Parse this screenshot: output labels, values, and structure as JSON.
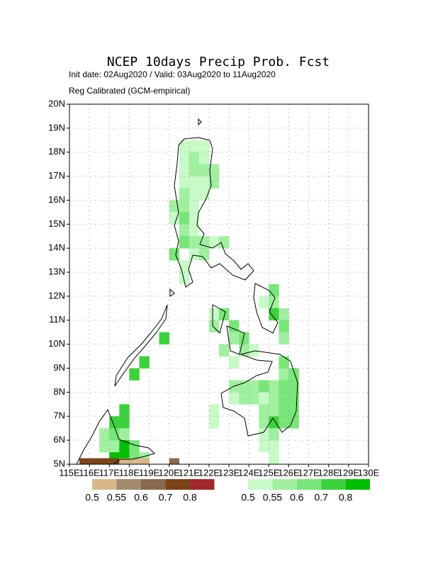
{
  "map": {
    "title": "NCEP 10days Precip Prob. Fcst",
    "subtitle": "Init date: 02Aug2020 / Valid: 03Aug2020 to 11Aug2020",
    "note": "Reg Calibrated (GCM-empirical)",
    "xlim": [
      115,
      130
    ],
    "ylim": [
      5,
      20
    ],
    "xticks": [
      {
        "value": 115,
        "label": "115E"
      },
      {
        "value": 116,
        "label": "116E"
      },
      {
        "value": 117,
        "label": "117E"
      },
      {
        "value": 118,
        "label": "118E"
      },
      {
        "value": 119,
        "label": "119E"
      },
      {
        "value": 120,
        "label": "120E"
      },
      {
        "value": 121,
        "label": "121E"
      },
      {
        "value": 122,
        "label": "122E"
      },
      {
        "value": 123,
        "label": "123E"
      },
      {
        "value": 124,
        "label": "124E"
      },
      {
        "value": 125,
        "label": "125E"
      },
      {
        "value": 126,
        "label": "126E"
      },
      {
        "value": 127,
        "label": "127E"
      },
      {
        "value": 128,
        "label": "128E"
      },
      {
        "value": 129,
        "label": "129E"
      },
      {
        "value": 130,
        "label": "130E"
      }
    ],
    "yticks": [
      {
        "value": 5,
        "label": "5N"
      },
      {
        "value": 6,
        "label": "6N"
      },
      {
        "value": 7,
        "label": "7N"
      },
      {
        "value": 8,
        "label": "8N"
      },
      {
        "value": 9,
        "label": "9N"
      },
      {
        "value": 10,
        "label": "10N"
      },
      {
        "value": 11,
        "label": "11N"
      },
      {
        "value": 12,
        "label": "12N"
      },
      {
        "value": 13,
        "label": "13N"
      },
      {
        "value": 14,
        "label": "14N"
      },
      {
        "value": 15,
        "label": "15N"
      },
      {
        "value": 16,
        "label": "16N"
      },
      {
        "value": 17,
        "label": "17N"
      },
      {
        "value": 18,
        "label": "18N"
      },
      {
        "value": 19,
        "label": "19N"
      },
      {
        "value": 20,
        "label": "20N"
      }
    ],
    "grid": true,
    "dry_colors": [
      "#d8b88a",
      "#a48a70",
      "#8a6a4c",
      "#7a4418",
      "#a02a2c"
    ],
    "dry_levels": [
      0.5,
      0.55,
      0.6,
      0.7,
      0.8
    ],
    "wet_colors": [
      "#c8fac8",
      "#a0f0a0",
      "#78e678",
      "#3cd23c",
      "#00be00"
    ],
    "wet_levels": [
      0.5,
      0.55,
      0.6,
      0.7,
      0.8
    ],
    "wet_cells": [
      [
        120.5,
        18,
        0
      ],
      [
        121,
        18,
        0
      ],
      [
        121.5,
        18,
        0
      ],
      [
        120.5,
        17.5,
        0
      ],
      [
        121,
        17.5,
        1
      ],
      [
        121.5,
        17.5,
        0
      ],
      [
        120.5,
        17,
        0
      ],
      [
        121,
        17,
        1
      ],
      [
        121.5,
        17,
        1
      ],
      [
        122,
        17,
        1
      ],
      [
        120.5,
        16.5,
        0
      ],
      [
        121,
        16.5,
        0
      ],
      [
        121.5,
        16.5,
        0
      ],
      [
        122,
        16.5,
        1
      ],
      [
        120.5,
        16,
        1
      ],
      [
        121,
        16,
        0
      ],
      [
        121.5,
        16,
        0
      ],
      [
        120,
        15.5,
        1
      ],
      [
        120.5,
        15.5,
        1
      ],
      [
        121,
        15.5,
        0
      ],
      [
        120,
        15,
        0
      ],
      [
        120.5,
        15,
        2
      ],
      [
        121,
        15,
        0
      ],
      [
        120.5,
        14.5,
        1
      ],
      [
        121,
        14.5,
        0
      ],
      [
        120.5,
        14,
        2
      ],
      [
        121,
        14,
        1
      ],
      [
        121.5,
        14,
        1
      ],
      [
        122,
        14,
        0
      ],
      [
        122.5,
        14,
        1
      ],
      [
        120,
        13.5,
        2
      ],
      [
        121,
        13.5,
        0
      ],
      [
        121.5,
        13.5,
        1
      ],
      [
        120.5,
        13,
        0
      ],
      [
        120.5,
        12.5,
        0
      ],
      [
        125,
        12,
        2
      ],
      [
        124.5,
        11.5,
        0
      ],
      [
        125,
        11.5,
        1
      ],
      [
        122,
        11,
        0
      ],
      [
        122.5,
        11,
        2
      ],
      [
        125,
        11,
        3
      ],
      [
        125.5,
        11,
        1
      ],
      [
        122,
        10.5,
        1
      ],
      [
        123,
        10.5,
        2
      ],
      [
        125.5,
        10.5,
        2
      ],
      [
        123,
        10,
        1
      ],
      [
        123.5,
        10,
        2
      ],
      [
        125.5,
        10,
        1
      ],
      [
        122.5,
        9.5,
        1
      ],
      [
        123.5,
        9.5,
        1
      ],
      [
        124,
        9.5,
        0
      ],
      [
        123,
        9,
        0
      ],
      [
        125.5,
        9,
        2
      ],
      [
        125.5,
        8.5,
        1
      ],
      [
        126,
        8.5,
        2
      ],
      [
        123,
        8,
        1
      ],
      [
        123.5,
        8,
        1
      ],
      [
        124,
        8,
        1
      ],
      [
        124.5,
        8,
        2
      ],
      [
        125,
        8,
        1
      ],
      [
        125.5,
        8,
        2
      ],
      [
        126,
        8,
        2
      ],
      [
        123,
        7.5,
        0
      ],
      [
        123.5,
        7.5,
        1
      ],
      [
        124,
        7.5,
        1
      ],
      [
        124.5,
        7.5,
        0
      ],
      [
        125,
        7.5,
        1
      ],
      [
        125.5,
        7.5,
        2
      ],
      [
        126,
        7.5,
        2
      ],
      [
        122,
        7,
        0
      ],
      [
        124.5,
        7,
        1
      ],
      [
        125,
        7,
        1
      ],
      [
        125.5,
        7,
        2
      ],
      [
        126,
        7,
        2
      ],
      [
        122,
        6.5,
        0
      ],
      [
        124.5,
        6.5,
        1
      ],
      [
        125,
        6.5,
        3
      ],
      [
        125.5,
        6.5,
        2
      ],
      [
        126,
        6.5,
        2
      ],
      [
        124.5,
        6,
        0
      ],
      [
        125,
        6,
        1
      ],
      [
        124.5,
        5.5,
        0
      ],
      [
        125,
        5.5,
        0
      ],
      [
        125,
        5,
        0
      ],
      [
        119.5,
        10,
        3
      ],
      [
        118.5,
        9,
        3
      ],
      [
        118,
        8.5,
        3
      ],
      [
        117.5,
        7,
        3
      ],
      [
        117,
        6.5,
        3
      ],
      [
        117.5,
        6.5,
        3
      ],
      [
        116.5,
        6,
        1
      ],
      [
        117,
        6,
        2
      ],
      [
        117.5,
        6,
        1
      ],
      [
        116.5,
        5.5,
        1
      ],
      [
        117,
        5.5,
        1
      ],
      [
        117.5,
        5.5,
        4
      ],
      [
        118,
        5.5,
        2
      ],
      [
        117,
        5,
        4
      ],
      [
        117.5,
        5,
        4
      ],
      [
        118,
        5,
        2
      ],
      [
        118.5,
        5,
        1
      ]
    ],
    "dry_cells": [
      [
        115.5,
        4.75,
        3
      ],
      [
        116,
        4.75,
        3
      ],
      [
        116.5,
        4.75,
        3
      ],
      [
        117,
        4.75,
        3
      ],
      [
        117.5,
        4.75,
        0
      ],
      [
        118,
        4.75,
        0
      ],
      [
        118.5,
        4.75,
        0
      ],
      [
        120,
        4.75,
        2
      ]
    ]
  }
}
